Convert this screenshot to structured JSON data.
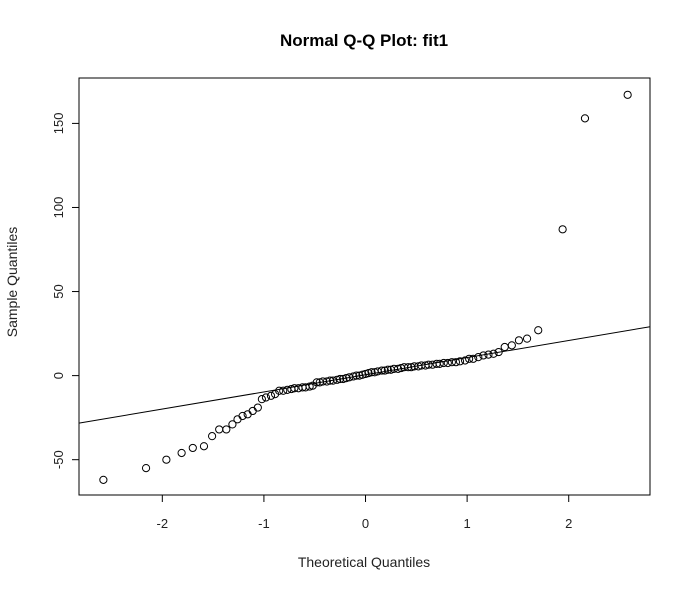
{
  "chart_data": {
    "type": "scatter",
    "title": "Normal Q-Q Plot: fit1",
    "xlabel": "Theoretical Quantiles",
    "ylabel": "Sample Quantiles",
    "xlim": [
      -2.82,
      2.8
    ],
    "ylim": [
      -71,
      177
    ],
    "x_ticks": [
      -2,
      -1,
      0,
      1,
      2
    ],
    "y_ticks": [
      -50,
      0,
      50,
      100,
      150
    ],
    "grid": false,
    "reference_line": {
      "intercept": 0.5,
      "slope": 10.2
    },
    "points": [
      [
        -2.58,
        -62
      ],
      [
        -2.16,
        -55
      ],
      [
        -1.96,
        -50
      ],
      [
        -1.81,
        -46
      ],
      [
        -1.7,
        -43
      ],
      [
        -1.59,
        -42
      ],
      [
        -1.51,
        -36
      ],
      [
        -1.44,
        -32
      ],
      [
        -1.37,
        -32
      ],
      [
        -1.31,
        -29
      ],
      [
        -1.26,
        -26
      ],
      [
        -1.21,
        -24
      ],
      [
        -1.16,
        -23
      ],
      [
        -1.11,
        -21
      ],
      [
        -1.06,
        -19
      ],
      [
        -1.02,
        -14
      ],
      [
        -0.98,
        -13
      ],
      [
        -0.93,
        -12
      ],
      [
        -0.89,
        -11
      ],
      [
        -0.85,
        -9
      ],
      [
        -0.81,
        -9
      ],
      [
        -0.77,
        -8.5
      ],
      [
        -0.73,
        -8
      ],
      [
        -0.7,
        -7.5
      ],
      [
        -0.66,
        -7.5
      ],
      [
        -0.62,
        -7
      ],
      [
        -0.59,
        -7
      ],
      [
        -0.55,
        -6.5
      ],
      [
        -0.52,
        -6
      ],
      [
        -0.48,
        -4
      ],
      [
        -0.45,
        -4
      ],
      [
        -0.42,
        -3.5
      ],
      [
        -0.38,
        -3.5
      ],
      [
        -0.35,
        -3
      ],
      [
        -0.32,
        -3
      ],
      [
        -0.28,
        -2.5
      ],
      [
        -0.25,
        -2
      ],
      [
        -0.22,
        -2
      ],
      [
        -0.19,
        -1.5
      ],
      [
        -0.16,
        -1
      ],
      [
        -0.12,
        -0.5
      ],
      [
        -0.09,
        0
      ],
      [
        -0.06,
        0
      ],
      [
        -0.03,
        0.5
      ],
      [
        0.0,
        1
      ],
      [
        0.03,
        1.5
      ],
      [
        0.06,
        2
      ],
      [
        0.09,
        2
      ],
      [
        0.12,
        2.5
      ],
      [
        0.16,
        3
      ],
      [
        0.19,
        3
      ],
      [
        0.22,
        3.5
      ],
      [
        0.25,
        3.5
      ],
      [
        0.28,
        4
      ],
      [
        0.32,
        4
      ],
      [
        0.35,
        4.5
      ],
      [
        0.38,
        5
      ],
      [
        0.42,
        5
      ],
      [
        0.45,
        5
      ],
      [
        0.48,
        5.5
      ],
      [
        0.52,
        5.5
      ],
      [
        0.55,
        6
      ],
      [
        0.59,
        6
      ],
      [
        0.62,
        6.5
      ],
      [
        0.66,
        6.5
      ],
      [
        0.7,
        7
      ],
      [
        0.73,
        7
      ],
      [
        0.77,
        7.5
      ],
      [
        0.81,
        7.5
      ],
      [
        0.85,
        8
      ],
      [
        0.89,
        8
      ],
      [
        0.93,
        8.5
      ],
      [
        0.98,
        9
      ],
      [
        1.02,
        10
      ],
      [
        1.06,
        10
      ],
      [
        1.11,
        11
      ],
      [
        1.16,
        12
      ],
      [
        1.21,
        12.5
      ],
      [
        1.26,
        13
      ],
      [
        1.31,
        14
      ],
      [
        1.37,
        17
      ],
      [
        1.44,
        18
      ],
      [
        1.51,
        21
      ],
      [
        1.59,
        22
      ],
      [
        1.7,
        27
      ],
      [
        1.94,
        87
      ],
      [
        2.16,
        153
      ],
      [
        2.58,
        167
      ]
    ]
  }
}
